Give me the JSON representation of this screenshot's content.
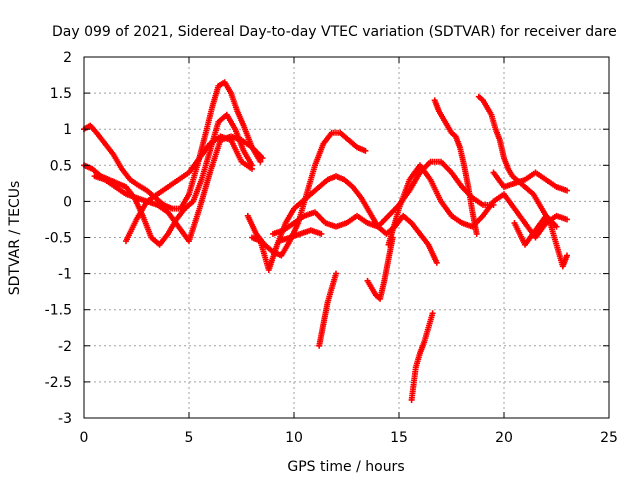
{
  "chart_data": {
    "type": "scatter",
    "title": "Day 099 of 2021, Sidereal Day-to-day VTEC variation (SDTVAR) for receiver dare",
    "xlabel": "GPS time / hours",
    "ylabel": "SDTVAR / TECUs",
    "xlim": [
      0,
      25
    ],
    "ylim": [
      -3,
      2
    ],
    "xticks": [
      0,
      5,
      10,
      15,
      20,
      25
    ],
    "yticks": [
      -3,
      -2.5,
      -2,
      -1.5,
      -1,
      -0.5,
      0,
      0.5,
      1,
      1.5,
      2
    ],
    "xtick_labels": [
      "0",
      "5",
      "10",
      "15",
      "20",
      "25"
    ],
    "ytick_labels": [
      "-3",
      "-2.5",
      "-2",
      "-1.5",
      "-1",
      "-0.5",
      "0",
      "0.5",
      "1",
      "1.5",
      "2"
    ],
    "grid": true,
    "marker": "+",
    "color": "#ff0000",
    "series": [
      {
        "name": "track1",
        "x": [
          0.0,
          0.3,
          0.6,
          1.0,
          1.4,
          1.8,
          2.2,
          2.6,
          3.0,
          3.4,
          3.8,
          4.2,
          4.6,
          5.0,
          5.4,
          5.8,
          6.1,
          6.4,
          6.7,
          7.0,
          7.3,
          7.6,
          8.0,
          8.4
        ],
        "y": [
          1.0,
          1.05,
          0.95,
          0.8,
          0.65,
          0.45,
          0.3,
          0.22,
          0.15,
          0.05,
          -0.05,
          -0.1,
          -0.1,
          0.1,
          0.5,
          0.95,
          1.3,
          1.6,
          1.65,
          1.5,
          1.25,
          1.05,
          0.75,
          0.55
        ]
      },
      {
        "name": "track2",
        "x": [
          0.0,
          0.4,
          0.8,
          1.2,
          1.6,
          2.0,
          2.4,
          2.8,
          3.2,
          3.6,
          4.0,
          4.4,
          4.8,
          5.2,
          5.6,
          6.0,
          6.4,
          6.8,
          7.2,
          7.6,
          8.0
        ],
        "y": [
          0.5,
          0.45,
          0.35,
          0.3,
          0.25,
          0.2,
          0.05,
          -0.2,
          -0.5,
          -0.6,
          -0.45,
          -0.25,
          -0.1,
          0.0,
          0.3,
          0.7,
          1.1,
          1.2,
          1.0,
          0.7,
          0.5
        ]
      },
      {
        "name": "track3",
        "x": [
          0.5,
          1.0,
          1.5,
          2.0,
          2.5,
          3.0,
          3.5,
          4.0,
          4.5,
          5.0,
          5.5,
          6.0,
          6.5,
          7.0,
          7.5,
          8.0,
          8.5
        ],
        "y": [
          0.35,
          0.3,
          0.2,
          0.1,
          0.05,
          0.0,
          -0.05,
          -0.15,
          -0.35,
          -0.55,
          -0.1,
          0.4,
          0.85,
          0.9,
          0.85,
          0.75,
          0.6
        ]
      },
      {
        "name": "track4",
        "x": [
          2.0,
          2.5,
          3.0,
          3.5,
          4.0,
          4.5,
          5.0,
          5.5,
          6.0,
          6.5,
          7.0,
          7.5,
          8.0
        ],
        "y": [
          -0.55,
          -0.25,
          0.0,
          0.1,
          0.2,
          0.3,
          0.4,
          0.6,
          0.8,
          0.9,
          0.85,
          0.55,
          0.45
        ]
      },
      {
        "name": "track5",
        "x": [
          7.8,
          8.2,
          8.6,
          9.0,
          9.4,
          9.8,
          10.2,
          10.6,
          11.0,
          11.4,
          11.8,
          12.2,
          12.6,
          13.0,
          13.4
        ],
        "y": [
          -0.2,
          -0.45,
          -0.6,
          -0.7,
          -0.75,
          -0.55,
          -0.3,
          0.1,
          0.5,
          0.8,
          0.95,
          0.95,
          0.85,
          0.75,
          0.7
        ]
      },
      {
        "name": "track6",
        "x": [
          8.0,
          8.4,
          8.8,
          9.2,
          9.6,
          10.0,
          10.4,
          10.8,
          11.2,
          11.6,
          12.0,
          12.4,
          12.8,
          13.2,
          13.6,
          14.0,
          14.4,
          14.8,
          15.2,
          15.6,
          16.0,
          16.4,
          16.8
        ],
        "y": [
          -0.5,
          -0.55,
          -0.95,
          -0.6,
          -0.3,
          -0.1,
          0.0,
          0.1,
          0.2,
          0.3,
          0.35,
          0.3,
          0.2,
          0.05,
          -0.15,
          -0.35,
          -0.45,
          -0.35,
          -0.2,
          -0.3,
          -0.45,
          -0.6,
          -0.85
        ]
      },
      {
        "name": "track7",
        "x": [
          9.0,
          9.5,
          10.0,
          10.5,
          11.0,
          11.5,
          12.0,
          12.5,
          13.0,
          13.5,
          14.0,
          14.5,
          15.0,
          15.5,
          16.0,
          16.5,
          17.0,
          17.5,
          18.0,
          18.5,
          19.0,
          19.5
        ],
        "y": [
          -0.45,
          -0.4,
          -0.3,
          -0.2,
          -0.15,
          -0.3,
          -0.35,
          -0.3,
          -0.2,
          -0.3,
          -0.35,
          -0.2,
          -0.05,
          0.15,
          0.4,
          0.55,
          0.55,
          0.4,
          0.2,
          0.05,
          -0.05,
          -0.05
        ]
      },
      {
        "name": "track8",
        "x": [
          9.3,
          9.8,
          10.3,
          10.8,
          11.3
        ],
        "y": [
          -0.55,
          -0.5,
          -0.45,
          -0.4,
          -0.45
        ]
      },
      {
        "name": "track9",
        "x": [
          11.2,
          11.4,
          11.6,
          11.8,
          12.0
        ],
        "y": [
          -2.0,
          -1.7,
          -1.4,
          -1.2,
          -1.0
        ]
      },
      {
        "name": "track10",
        "x": [
          13.5,
          13.7,
          13.9,
          14.1,
          14.3,
          14.5,
          14.7
        ],
        "y": [
          -1.1,
          -1.2,
          -1.3,
          -1.35,
          -1.1,
          -0.8,
          -0.5
        ]
      },
      {
        "name": "track11",
        "x": [
          15.6,
          15.8,
          16.0,
          16.2,
          16.4,
          16.6
        ],
        "y": [
          -2.75,
          -2.3,
          -2.1,
          -1.95,
          -1.75,
          -1.55
        ]
      },
      {
        "name": "track12",
        "x": [
          14.5,
          15.0,
          15.5,
          16.0,
          16.5,
          17.0,
          17.5,
          18.0,
          18.5,
          19.0,
          19.5,
          20.0,
          20.5,
          21.0,
          21.5,
          22.0,
          22.5,
          23.0
        ],
        "y": [
          -0.6,
          -0.1,
          0.3,
          0.5,
          0.3,
          0.0,
          -0.2,
          -0.3,
          -0.35,
          -0.2,
          0.0,
          0.1,
          -0.1,
          -0.3,
          -0.5,
          -0.3,
          -0.2,
          -0.25
        ]
      },
      {
        "name": "track13",
        "x": [
          16.7,
          16.9,
          17.1,
          17.3,
          17.5,
          17.7,
          17.9,
          18.1,
          18.3,
          18.5,
          18.7
        ],
        "y": [
          1.4,
          1.25,
          1.15,
          1.05,
          0.95,
          0.9,
          0.75,
          0.5,
          0.2,
          -0.15,
          -0.45
        ]
      },
      {
        "name": "track14",
        "x": [
          18.8,
          19.0,
          19.2,
          19.4,
          19.6,
          19.8,
          20.0,
          20.2,
          20.4,
          20.6,
          20.8,
          21.0,
          21.2,
          21.4,
          21.6,
          21.8,
          22.0,
          22.2,
          22.4,
          22.6,
          22.8,
          23.0
        ],
        "y": [
          1.45,
          1.4,
          1.3,
          1.2,
          1.0,
          0.85,
          0.6,
          0.45,
          0.35,
          0.3,
          0.25,
          0.2,
          0.15,
          0.1,
          0.0,
          -0.1,
          -0.2,
          -0.3,
          -0.5,
          -0.7,
          -0.9,
          -0.75
        ]
      },
      {
        "name": "track15",
        "x": [
          19.5,
          20.0,
          20.5,
          21.0,
          21.5,
          22.0,
          22.5,
          23.0
        ],
        "y": [
          0.4,
          0.2,
          0.25,
          0.3,
          0.4,
          0.3,
          0.2,
          0.15
        ]
      },
      {
        "name": "track16",
        "x": [
          20.5,
          21.0,
          21.5,
          22.0,
          22.5
        ],
        "y": [
          -0.3,
          -0.6,
          -0.4,
          -0.2,
          -0.35
        ]
      }
    ]
  }
}
